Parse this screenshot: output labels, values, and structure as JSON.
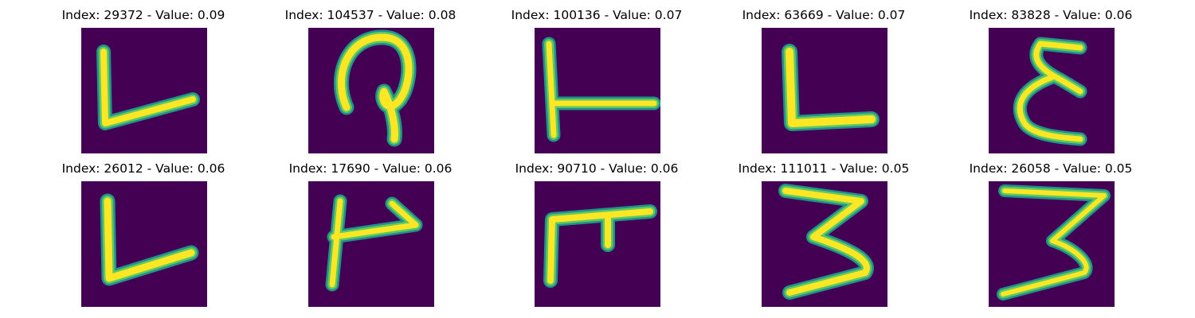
{
  "figure": {
    "colors": {
      "background": "#440154",
      "stroke_edge": "#21918c",
      "stroke_mid": "#5ec962",
      "stroke_core": "#fde725"
    },
    "panels": [
      {
        "title": "Index: 29372 - Value: 0.09",
        "glyph": "L"
      },
      {
        "title": "Index: 104537 - Value: 0.08",
        "glyph": "loop"
      },
      {
        "title": "Index: 100136 - Value: 0.07",
        "glyph": "T-side"
      },
      {
        "title": "Index: 63669 - Value: 0.07",
        "glyph": "L"
      },
      {
        "title": "Index: 83828 - Value: 0.06",
        "glyph": "epsilon"
      },
      {
        "title": "Index: 26012 - Value: 0.06",
        "glyph": "L"
      },
      {
        "title": "Index: 17690 - Value: 0.06",
        "glyph": "arrow"
      },
      {
        "title": "Index: 90710 - Value: 0.06",
        "glyph": "F-shape"
      },
      {
        "title": "Index: 111011 - Value: 0.05",
        "glyph": "3"
      },
      {
        "title": "Index: 26058 - Value: 0.05",
        "glyph": "3"
      }
    ]
  }
}
